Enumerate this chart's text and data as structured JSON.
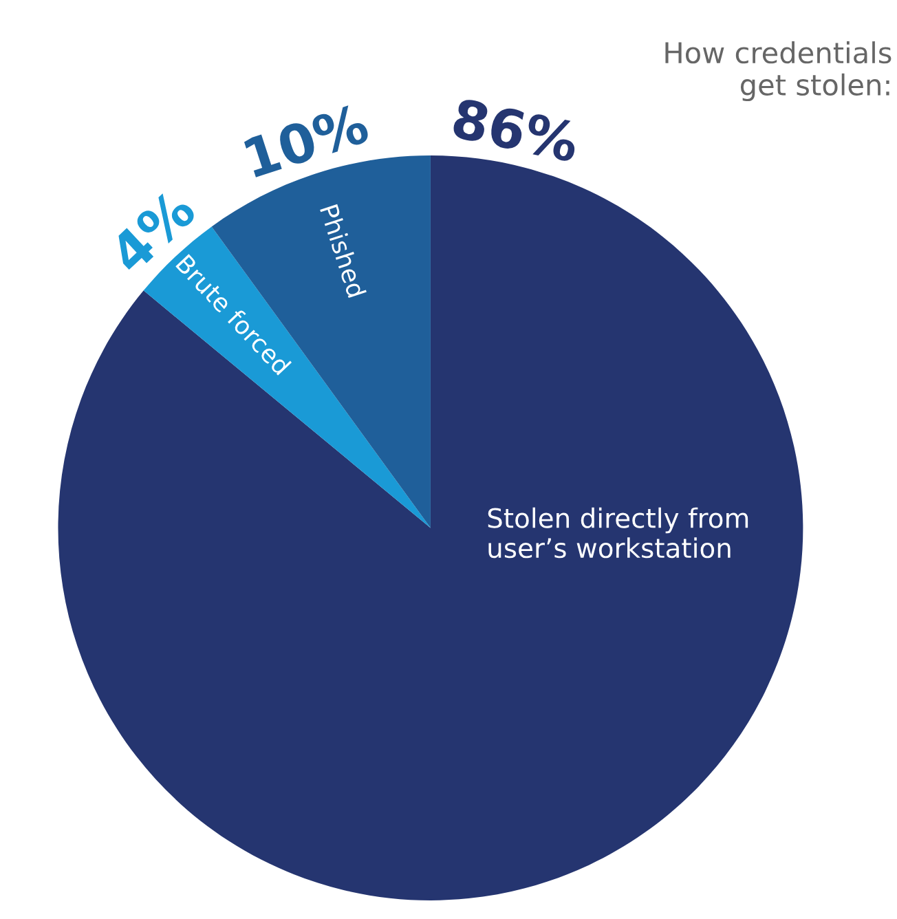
{
  "chart_data": {
    "type": "pie",
    "title": "How credentials\nget stolen:",
    "categories": [
      "Stolen directly from\nuser’s workstation",
      "Brute forced",
      "Phished"
    ],
    "values": [
      86,
      4,
      10
    ],
    "value_labels": [
      "86%",
      "4%",
      "10%"
    ],
    "colors": [
      "#253570",
      "#1a9ad6",
      "#1f5f9a"
    ],
    "legend": false
  }
}
